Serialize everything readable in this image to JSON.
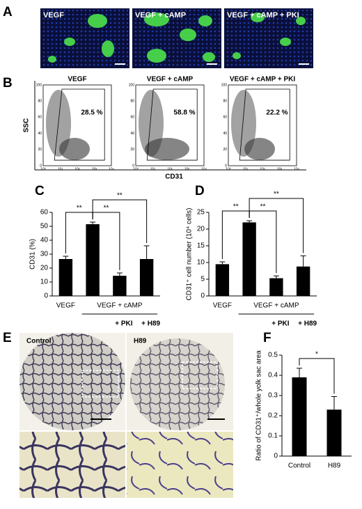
{
  "panel_labels": [
    "A",
    "B",
    "C",
    "D",
    "E",
    "F"
  ],
  "panel_a": {
    "labels": [
      "VEGF",
      "VEGF + cAMP",
      "VEGF + cAMP + PKI"
    ]
  },
  "panel_b": {
    "titles": [
      "VEGF",
      "VEGF + cAMP",
      "VEGF + cAMP + PKI"
    ],
    "gates": [
      "28.5 %",
      "58.8 %",
      "22.2 %"
    ],
    "y_label": "SSC",
    "x_label": "CD31",
    "y_tick_labels": [
      "0",
      "20",
      "40",
      "60",
      "80",
      "100"
    ],
    "x_tick_labels": [
      "10⁰",
      "10¹",
      "10²",
      "10³",
      "10⁴"
    ]
  },
  "panel_e": {
    "labels": [
      "Control",
      "H89"
    ]
  },
  "chart_data": [
    {
      "type": "bar",
      "y_label": "CD31 (%)",
      "categories": [
        "VEGF",
        null,
        "+ PKI",
        "+ H89"
      ],
      "group": {
        "label": "VEGF + cAMP",
        "from": 1,
        "to": 3
      },
      "values": [
        26.5,
        51.5,
        14.5,
        26.5
      ],
      "errors": [
        2,
        1.5,
        2,
        9.5
      ],
      "color": "#000000",
      "ylim": [
        0,
        60
      ],
      "yticks": [
        0,
        10,
        20,
        30,
        40,
        50,
        60
      ],
      "annotations": [
        {
          "label": "**",
          "from": 0,
          "to": 1,
          "level": 0
        },
        {
          "label": "**",
          "from": 1,
          "to": 2,
          "level": 0
        },
        {
          "label": "**",
          "from": 1,
          "to": 3,
          "level": 1
        }
      ]
    },
    {
      "type": "bar",
      "y_label": "CD31⁺ cell number (10⁴ cells)",
      "categories": [
        "VEGF",
        null,
        "+ PKI",
        "+ H89"
      ],
      "group": {
        "label": "VEGF + cAMP",
        "from": 1,
        "to": 3
      },
      "values": [
        9.5,
        22,
        5.3,
        8.8
      ],
      "errors": [
        0.7,
        0.5,
        0.7,
        3.2
      ],
      "color": "#000000",
      "ylim": [
        0,
        25
      ],
      "yticks": [
        0,
        5,
        10,
        15,
        20,
        25
      ],
      "annotations": [
        {
          "label": "**",
          "from": 0,
          "to": 1,
          "level": 0
        },
        {
          "label": "**",
          "from": 1,
          "to": 2,
          "level": 0
        },
        {
          "label": "**",
          "from": 1,
          "to": 3,
          "level": 1
        }
      ]
    },
    {
      "type": "bar",
      "y_label": "Ratio of CD31⁺/whole yolk sac area",
      "categories": [
        "Control",
        "H89"
      ],
      "values": [
        0.39,
        0.23
      ],
      "errors": [
        0.045,
        0.065
      ],
      "color": "#000000",
      "ylim": [
        0,
        0.5
      ],
      "yticks": [
        0,
        0.1,
        0.2,
        0.3,
        0.4,
        0.5
      ],
      "annotations": [
        {
          "label": "*",
          "from": 0,
          "to": 1,
          "level": 0
        }
      ]
    }
  ]
}
